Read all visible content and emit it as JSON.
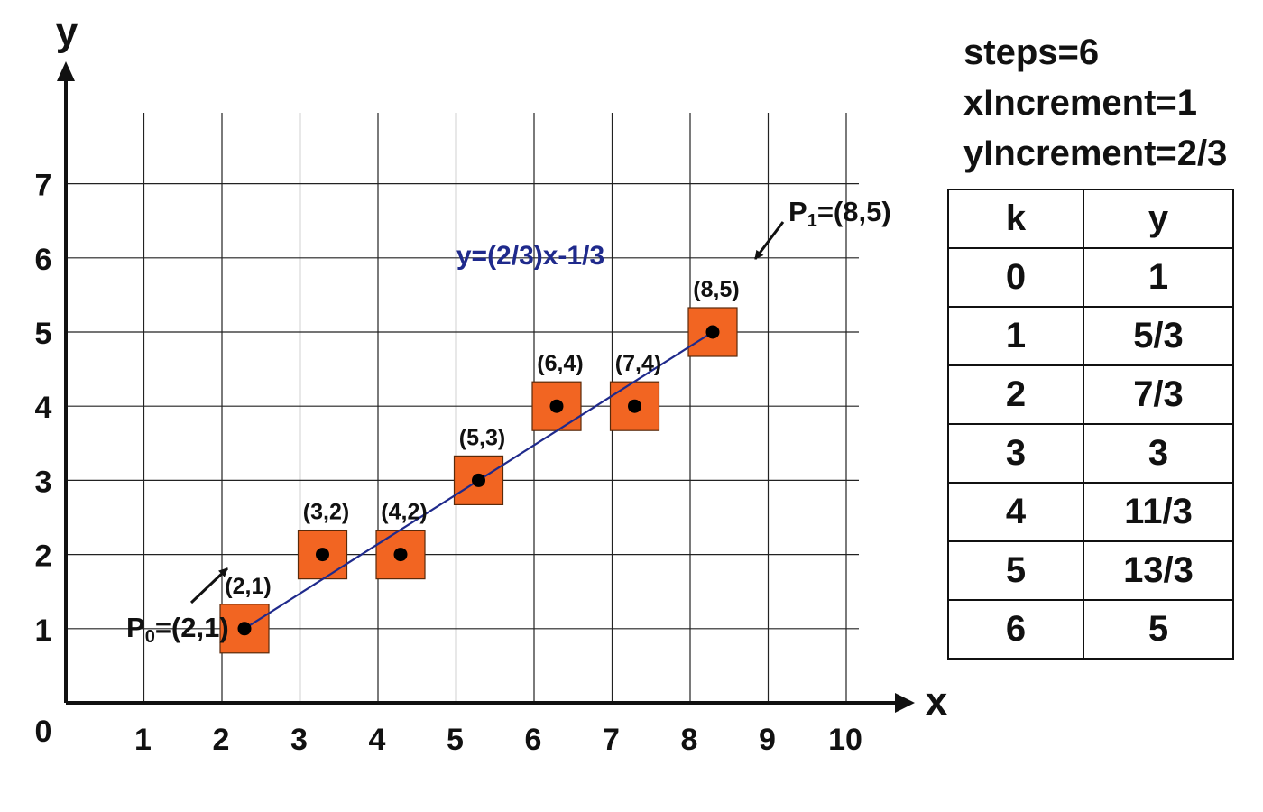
{
  "chart_data": {
    "type": "scatter",
    "x_label": "x",
    "y_label": "y",
    "origin_label": "0",
    "x_ticks": [
      "1",
      "2",
      "3",
      "4",
      "5",
      "6",
      "7",
      "8",
      "9",
      "10"
    ],
    "y_ticks": [
      "1",
      "2",
      "3",
      "4",
      "5",
      "6",
      "7"
    ],
    "xlim": [
      0,
      10
    ],
    "ylim": [
      0,
      7
    ],
    "grid": true,
    "line": {
      "equation_label": "y=(2/3)x-1/3",
      "from": [
        2,
        1
      ],
      "to": [
        8,
        5
      ],
      "color": "#1f2a8c"
    },
    "pixels": [
      {
        "x": 2,
        "y": 1,
        "label": "(2,1)"
      },
      {
        "x": 3,
        "y": 2,
        "label": "(3,2)"
      },
      {
        "x": 4,
        "y": 2,
        "label": "(4,2)"
      },
      {
        "x": 5,
        "y": 3,
        "label": "(5,3)"
      },
      {
        "x": 6,
        "y": 4,
        "label": "(6,4)"
      },
      {
        "x": 7,
        "y": 4,
        "label": "(7,4)"
      },
      {
        "x": 8,
        "y": 5,
        "label": "(8,5)"
      }
    ],
    "pixel_color": "#f26522",
    "endpoints": {
      "p0": {
        "name": "P",
        "sub": "0",
        "value": "=(2,1)"
      },
      "p1": {
        "name": "P",
        "sub": "1",
        "value": "=(8,5)"
      }
    }
  },
  "params": {
    "steps": "steps=6",
    "x_increment": "xIncrement=1",
    "y_increment": "yIncrement=2/3"
  },
  "table": {
    "headers": [
      "k",
      "y"
    ],
    "rows": [
      [
        "0",
        "1"
      ],
      [
        "1",
        "5/3"
      ],
      [
        "2",
        "7/3"
      ],
      [
        "3",
        "3"
      ],
      [
        "4",
        "11/3"
      ],
      [
        "5",
        "13/3"
      ],
      [
        "6",
        "5"
      ]
    ]
  }
}
